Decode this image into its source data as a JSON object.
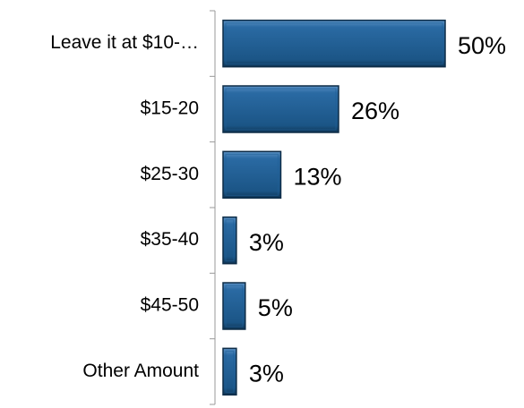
{
  "chart_data": {
    "type": "bar",
    "orientation": "horizontal",
    "categories": [
      "Leave it at $10-…",
      "$15-20",
      "$25-30",
      "$35-40",
      "$45-50",
      "Other Amount"
    ],
    "values": [
      50,
      26,
      13,
      3,
      5,
      3
    ],
    "value_labels": [
      "50%",
      "26%",
      "13%",
      "3%",
      "5%",
      "3%"
    ],
    "color": "#1f5f96"
  }
}
